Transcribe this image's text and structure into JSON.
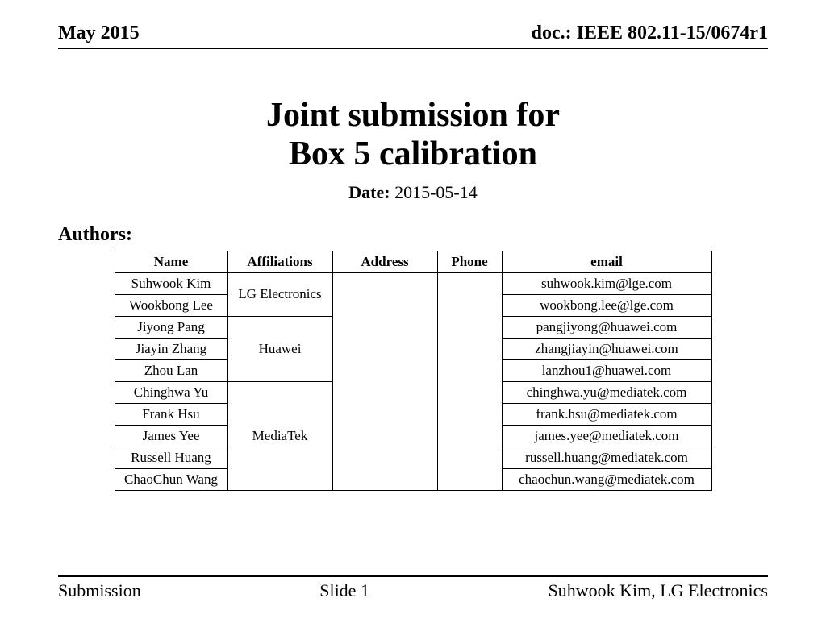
{
  "header": {
    "left": "May 2015",
    "right": "doc.: IEEE 802.11-15/0674r1"
  },
  "title": {
    "line1": "Joint submission for",
    "line2": "Box 5 calibration"
  },
  "date": {
    "label": "Date:",
    "value": "2015-05-14"
  },
  "authors_label": "Authors:",
  "table": {
    "headers": {
      "name": "Name",
      "affiliations": "Affiliations",
      "address": "Address",
      "phone": "Phone",
      "email": "email"
    },
    "groups": [
      {
        "affiliation": "LG Electronics",
        "rows": [
          {
            "name": "Suhwook Kim",
            "email": "suhwook.kim@lge.com"
          },
          {
            "name": "Wookbong Lee",
            "email": "wookbong.lee@lge.com"
          }
        ]
      },
      {
        "affiliation": "Huawei",
        "rows": [
          {
            "name": "Jiyong Pang",
            "email": "pangjiyong@huawei.com"
          },
          {
            "name": "Jiayin Zhang",
            "email": "zhangjiayin@huawei.com"
          },
          {
            "name": "Zhou Lan",
            "email": "lanzhou1@huawei.com"
          }
        ]
      },
      {
        "affiliation": "MediaTek",
        "rows": [
          {
            "name": "Chinghwa Yu",
            "email": "chinghwa.yu@mediatek.com"
          },
          {
            "name": "Frank Hsu",
            "email": "frank.hsu@mediatek.com"
          },
          {
            "name": "James Yee",
            "email": "james.yee@mediatek.com"
          },
          {
            "name": "Russell Huang",
            "email": "russell.huang@mediatek.com"
          },
          {
            "name": "ChaoChun Wang",
            "email": "chaochun.wang@mediatek.com"
          }
        ]
      }
    ],
    "total_rows": 10
  },
  "footer": {
    "left": "Submission",
    "center": "Slide 1",
    "right": "Suhwook Kim, LG Electronics"
  }
}
